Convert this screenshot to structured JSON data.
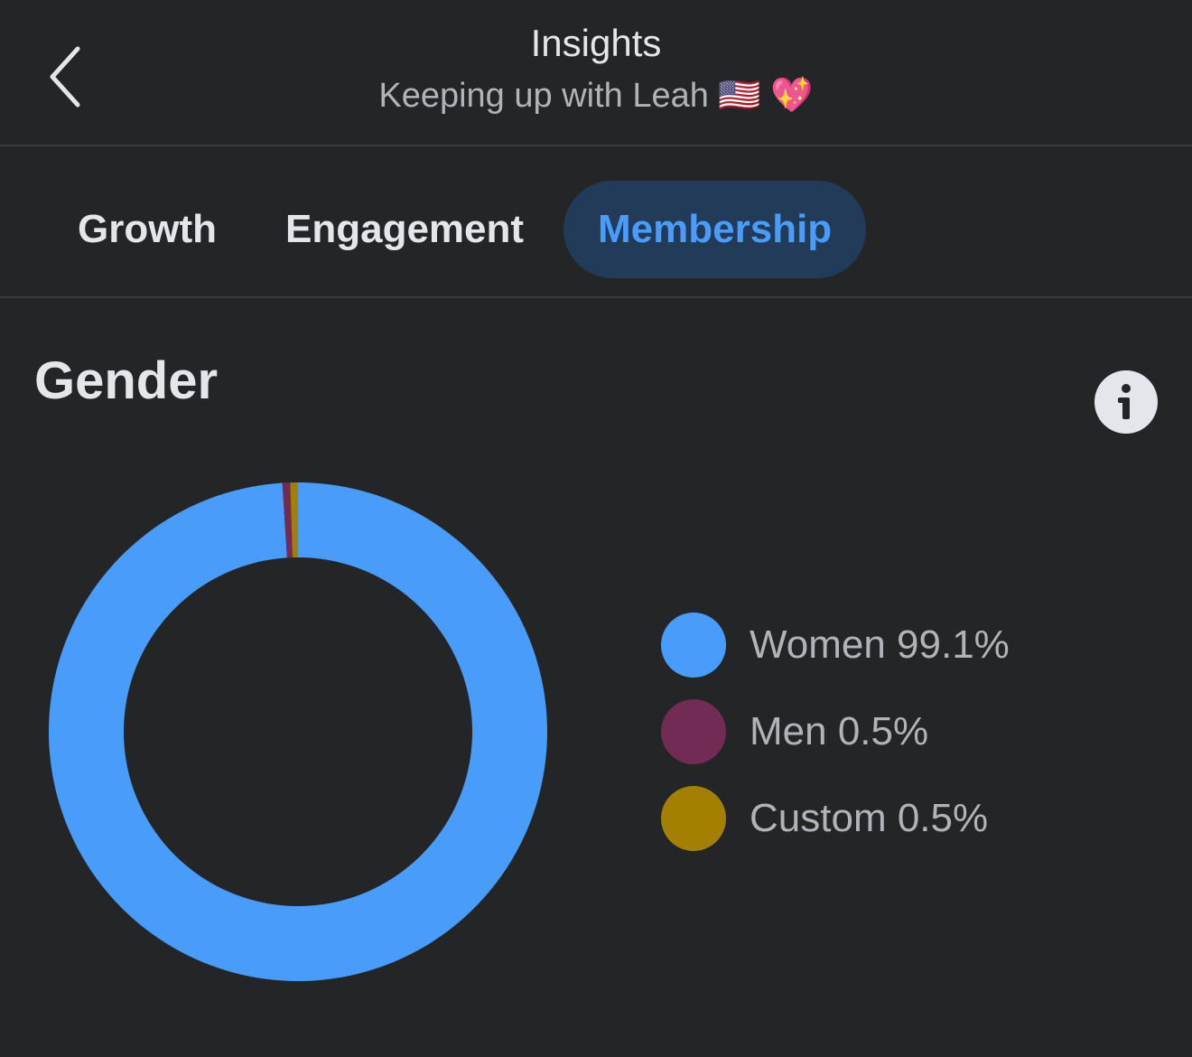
{
  "header": {
    "title": "Insights",
    "subtitle": "Keeping up with Leah 🇺🇸 💖",
    "back_icon": "chevron-left-icon"
  },
  "tabs": [
    {
      "label": "Growth",
      "active": false
    },
    {
      "label": "Engagement",
      "active": false
    },
    {
      "label": "Membership",
      "active": true
    }
  ],
  "section": {
    "title": "Gender",
    "info_icon": "info-icon"
  },
  "colors": {
    "background": "#242526",
    "accent": "#4a9cfb",
    "women": "#4a9cfb",
    "men": "#722b55",
    "custom": "#a38000"
  },
  "chart_data": {
    "type": "pie",
    "donut": true,
    "legend_placement": "right",
    "categories": [
      "Women",
      "Men",
      "Custom"
    ],
    "values": [
      99.1,
      0.5,
      0.5
    ],
    "colors": [
      "#4a9cfb",
      "#722b55",
      "#a38000"
    ],
    "labels": [
      "Women 99.1%",
      "Men 0.5%",
      "Custom 0.5%"
    ]
  }
}
